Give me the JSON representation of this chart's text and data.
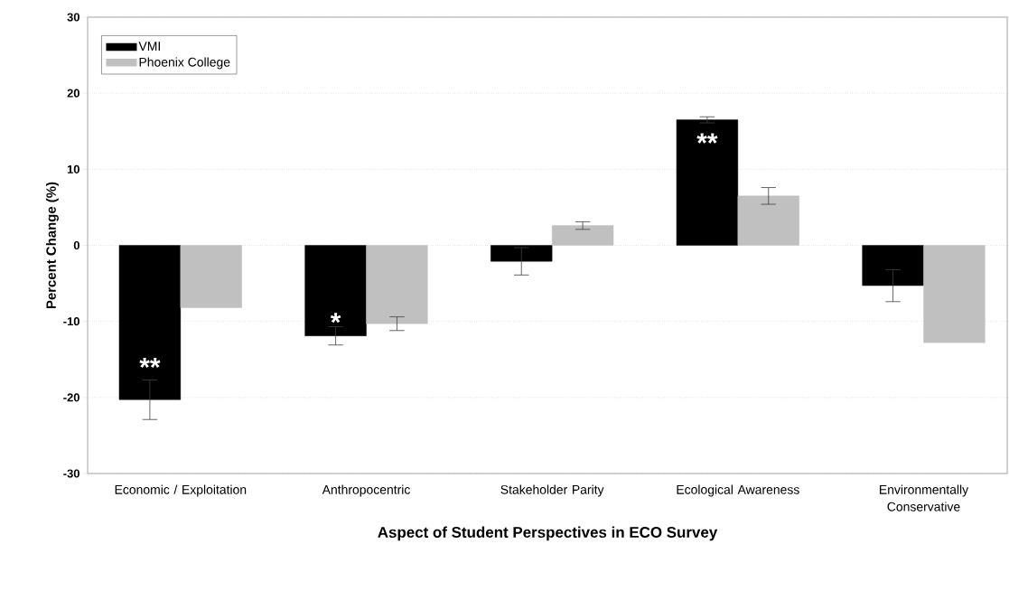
{
  "chart_data": {
    "type": "bar",
    "xlabel": "Aspect of Student Perspectives in ECO Survey",
    "ylabel": "Percent Change (%)",
    "categories": [
      "Economic / Exploitation",
      "Anthropocentric",
      "Stakeholder Parity",
      "Ecological Awareness",
      "Environmentally Conservative"
    ],
    "series": [
      {
        "name": "VMI",
        "color": "#000000",
        "values": [
          -20.3,
          -11.9,
          -2.1,
          16.5,
          -5.3
        ],
        "errors": [
          2.6,
          1.2,
          1.8,
          0.4,
          2.1
        ]
      },
      {
        "name": "Phoenix College",
        "color": "#c0c0c0",
        "values": [
          -8.2,
          -10.3,
          2.6,
          6.5,
          -12.8
        ],
        "errors": [
          null,
          0.9,
          0.5,
          1.1,
          null
        ]
      }
    ],
    "annotations": [
      {
        "text": "**",
        "x": "Economic / Exploitation",
        "y": -16.0
      },
      {
        "text": "*",
        "x": "Anthropocentric",
        "y": -10.1
      },
      {
        "text": "**",
        "x": "Ecological Awareness",
        "y": 13.5
      }
    ],
    "ylim": [
      -30,
      30
    ],
    "yticks": [
      -30,
      -20,
      -10,
      0,
      10,
      20,
      30
    ],
    "grid": "y",
    "legend": "top left"
  }
}
